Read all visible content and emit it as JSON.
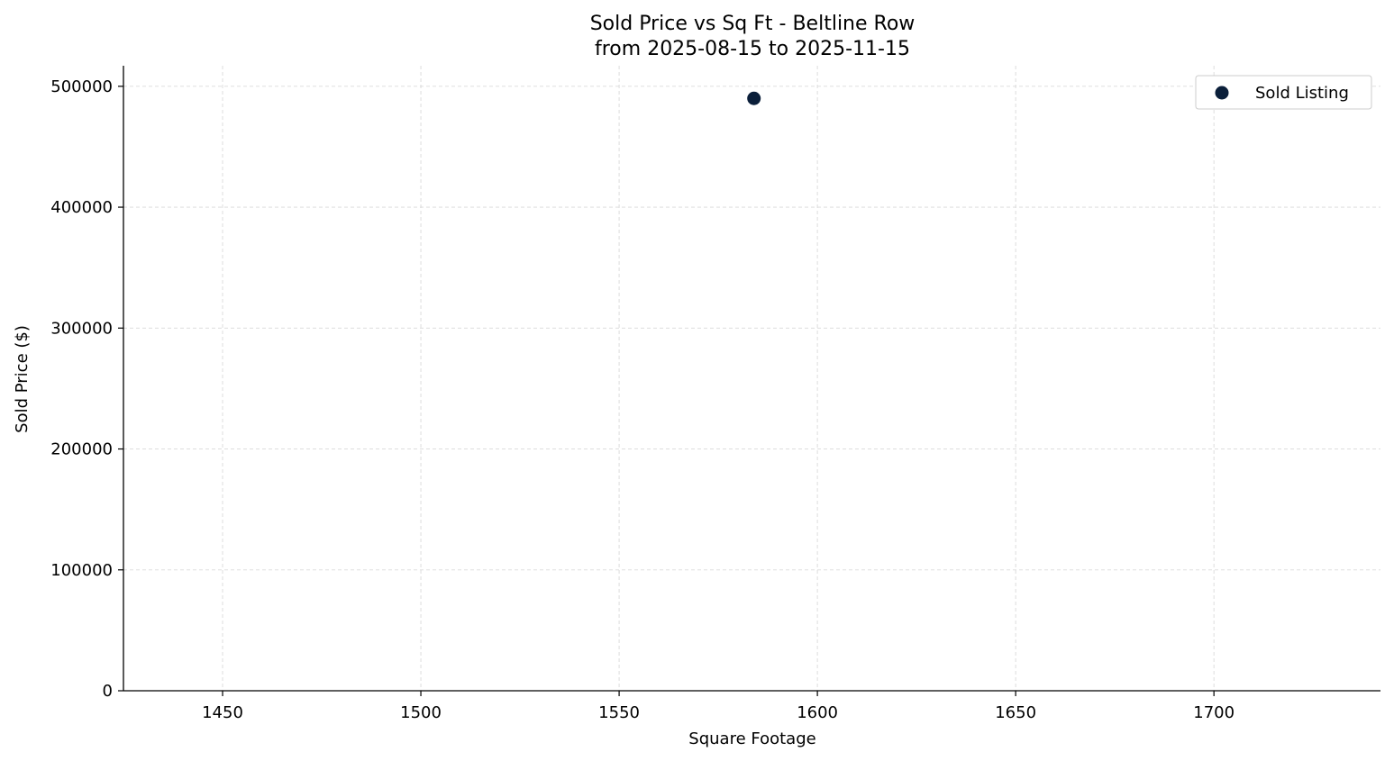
{
  "chart_data": {
    "type": "scatter",
    "title": "Sold Price vs Sq Ft - Beltline Row",
    "subtitle": "from 2025-08-15 to 2025-11-15",
    "xlabel": "Square Footage",
    "ylabel": "Sold Price ($)",
    "xlim": [
      1425,
      1742
    ],
    "ylim": [
      0,
      517000
    ],
    "xticks": [
      1450,
      1500,
      1550,
      1600,
      1650,
      1700
    ],
    "yticks": [
      0,
      100000,
      200000,
      300000,
      400000,
      500000
    ],
    "grid": true,
    "legend_position": "top-right",
    "series": [
      {
        "name": "Sold Listing",
        "color": "#0b1f3a",
        "points": [
          {
            "x": 1584,
            "y": 490000
          }
        ]
      }
    ]
  }
}
